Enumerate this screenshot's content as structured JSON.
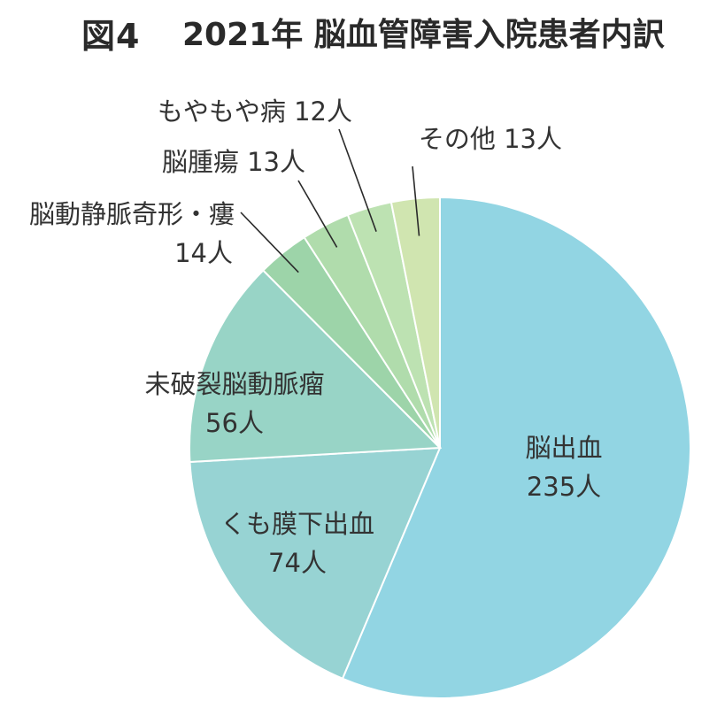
{
  "title": {
    "figure_label": "図4",
    "text": "2021年 脳血管障害入院患者内訳"
  },
  "chart_data": {
    "type": "pie",
    "unit": "人",
    "start": "12 o'clock",
    "direction": "clockwise",
    "slices": [
      {
        "name": "脳出血",
        "value": 235,
        "color": "#92d5e3"
      },
      {
        "name": "くも膜下出血",
        "value": 74,
        "color": "#97d3d3"
      },
      {
        "name": "未破裂脳動脈瘤",
        "value": 56,
        "color": "#98d4c6"
      },
      {
        "name": "脳動静脈奇形・瘻",
        "value": 14,
        "color": "#9dd4a9"
      },
      {
        "name": "脳腫瘍",
        "value": 13,
        "color": "#b0dcac"
      },
      {
        "name": "もやもや病",
        "value": 12,
        "color": "#bde2b2"
      },
      {
        "name": "その他",
        "value": 13,
        "color": "#d0e5b0"
      }
    ]
  }
}
